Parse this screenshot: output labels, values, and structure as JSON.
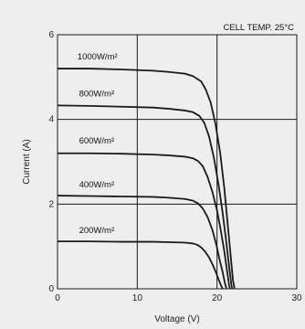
{
  "chart_data": {
    "type": "line",
    "title": "",
    "annotation": "CELL TEMP. 25°C",
    "xlabel": "Voltage (V)",
    "ylabel": "Current (A)",
    "xlim": [
      0,
      30
    ],
    "ylim": [
      0,
      6
    ],
    "xticks": [
      0,
      10,
      20,
      30
    ],
    "yticks": [
      0,
      2,
      4,
      6
    ],
    "grid": true,
    "colors": {
      "background": "#eeeeee",
      "line": "#1a1a1a",
      "grid": "#1a1a1a"
    },
    "series": [
      {
        "name": "1000W/m²",
        "x": [
          0,
          4,
          8,
          12,
          14,
          16,
          17,
          18,
          18.6,
          19.2,
          19.8,
          20.4,
          20.9,
          21.3,
          21.7,
          22.0,
          22.2
        ],
        "y": [
          5.2,
          5.2,
          5.18,
          5.15,
          5.12,
          5.08,
          5.02,
          4.9,
          4.7,
          4.4,
          3.9,
          3.2,
          2.4,
          1.6,
          0.8,
          0.2,
          0.0
        ]
      },
      {
        "name": "800W/m²",
        "x": [
          0,
          4,
          8,
          12,
          14,
          16,
          17,
          17.8,
          18.4,
          19.0,
          19.6,
          20.2,
          20.7,
          21.1,
          21.5,
          21.8,
          21.9
        ],
        "y": [
          4.33,
          4.32,
          4.3,
          4.28,
          4.25,
          4.21,
          4.17,
          4.08,
          3.92,
          3.6,
          3.1,
          2.45,
          1.8,
          1.2,
          0.55,
          0.1,
          0.0
        ]
      },
      {
        "name": "600W/m²",
        "x": [
          0,
          4,
          8,
          12,
          14,
          16,
          17,
          17.6,
          18.2,
          18.8,
          19.4,
          20.0,
          20.5,
          20.9,
          21.2,
          21.5,
          21.6
        ],
        "y": [
          3.2,
          3.2,
          3.19,
          3.17,
          3.15,
          3.12,
          3.08,
          3.02,
          2.9,
          2.65,
          2.3,
          1.85,
          1.35,
          0.9,
          0.5,
          0.1,
          0.0
        ]
      },
      {
        "name": "400W/m²",
        "x": [
          0,
          4,
          8,
          12,
          14,
          16,
          17,
          17.6,
          18.2,
          18.8,
          19.4,
          19.9,
          20.3,
          20.7,
          21.0,
          21.2
        ],
        "y": [
          2.2,
          2.19,
          2.18,
          2.17,
          2.15,
          2.12,
          2.08,
          2.02,
          1.9,
          1.7,
          1.4,
          1.05,
          0.7,
          0.4,
          0.12,
          0.0
        ]
      },
      {
        "name": "200W/m²",
        "x": [
          0,
          4,
          8,
          12,
          14,
          16,
          17,
          17.5,
          18.0,
          18.5,
          19.0,
          19.5,
          19.9,
          20.2,
          20.5,
          20.7
        ],
        "y": [
          1.12,
          1.12,
          1.11,
          1.11,
          1.1,
          1.09,
          1.07,
          1.04,
          0.98,
          0.88,
          0.74,
          0.55,
          0.37,
          0.22,
          0.08,
          0.0
        ]
      }
    ],
    "label_anchor": [
      {
        "series": "1000W/m²",
        "x": 2.5,
        "y": 5.42
      },
      {
        "series": "800W/m²",
        "x": 2.7,
        "y": 4.54
      },
      {
        "series": "600W/m²",
        "x": 2.7,
        "y": 3.43
      },
      {
        "series": "400W/m²",
        "x": 2.7,
        "y": 2.4
      },
      {
        "series": "200W/m²",
        "x": 2.7,
        "y": 1.32
      }
    ]
  }
}
